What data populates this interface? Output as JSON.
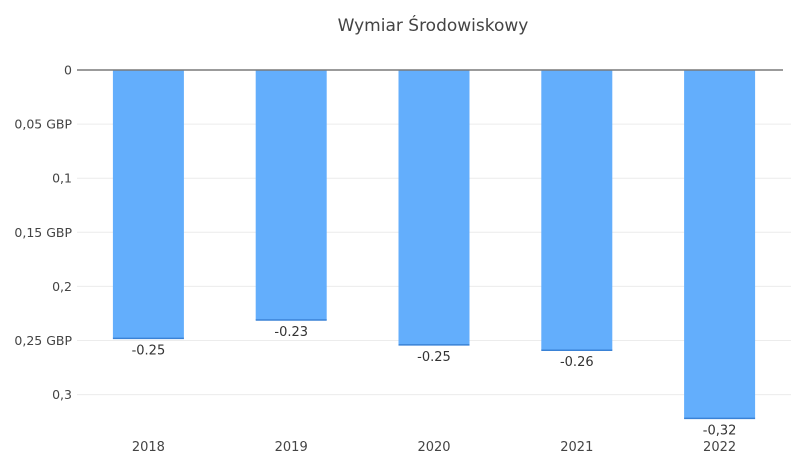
{
  "chart_data": {
    "type": "bar",
    "title": "Wymiar Środowiskowy",
    "categories": [
      "2018",
      "2019",
      "2020",
      "2021",
      "2022"
    ],
    "values": [
      -0.248,
      -0.231,
      -0.254,
      -0.259,
      -0.322
    ],
    "data_labels": [
      "-0.25",
      "-0.23",
      "-0.25",
      "-0.26",
      "-0,32"
    ],
    "y_ticks": [
      {
        "value": 0,
        "label": "0"
      },
      {
        "value": -0.05,
        "label": "0,05 GBP"
      },
      {
        "value": -0.1,
        "label": "0,1"
      },
      {
        "value": -0.15,
        "label": "0,15 GBP"
      },
      {
        "value": -0.2,
        "label": "0,2"
      },
      {
        "value": -0.25,
        "label": "0,25 GBP"
      },
      {
        "value": -0.3,
        "label": "0,3"
      }
    ],
    "ylim": [
      -0.33,
      0
    ],
    "grid": true,
    "legend": "none",
    "bar_color": "#63aefc"
  }
}
